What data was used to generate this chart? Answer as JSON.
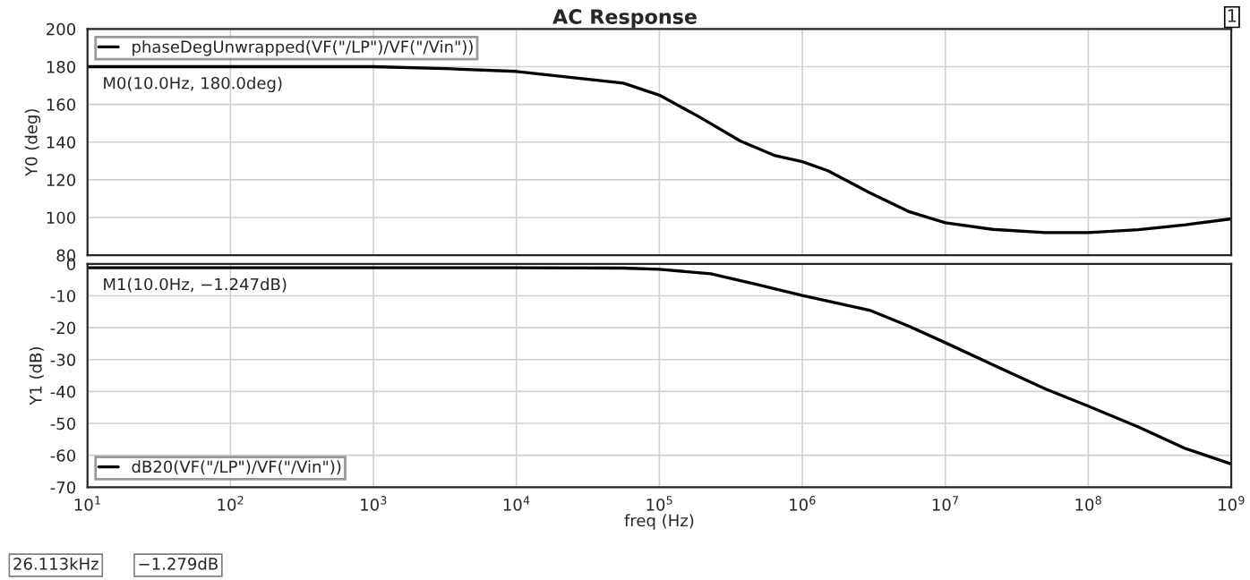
{
  "chart_data": [
    {
      "type": "line",
      "title": "AC Response",
      "ylabel": "Y0 (deg)",
      "log": "x",
      "grid": true,
      "legend": "top left",
      "tick_labels": "y",
      "line_style": "solid",
      "marker": "none",
      "xlim": [
        10,
        1000000000
      ],
      "ylim": [
        80,
        200
      ],
      "yticks": [
        80,
        100,
        120,
        140,
        160,
        180,
        200
      ],
      "series": [
        {
          "name": "phaseDegUnwrapped(VF(\"/LP\")/VF(\"/Vin\"))",
          "color": "#000000",
          "x": [
            10,
            100,
            1000,
            3162,
            10000,
            56000,
            100000,
            188000,
            368000,
            646000,
            1000000,
            1510000,
            2950000,
            5620000,
            10000000,
            21400000,
            50100000,
            100000000,
            224000000,
            479000000,
            1000000000
          ],
          "values": [
            180,
            180,
            180,
            179,
            177.5,
            171.3,
            164.9,
            153.6,
            140.6,
            132.8,
            129.6,
            124.8,
            113.2,
            103.0,
            97.2,
            93.7,
            92.0,
            92.0,
            93.5,
            96.1,
            99.3
          ]
        }
      ],
      "annotations": [
        {
          "text": "M0(10.0Hz, 180.0deg)",
          "x": 10,
          "y": 180
        },
        "1"
      ]
    },
    {
      "type": "line",
      "xlabel": "freq (Hz)",
      "ylabel": "Y1 (dB)",
      "log": "x",
      "grid": true,
      "legend": "bottom left",
      "line_style": "solid",
      "marker": "none",
      "xlim": [
        10,
        1000000000
      ],
      "xticks": [
        {
          "value": 10,
          "label": "10$^{1}$"
        },
        {
          "value": 100,
          "label": "10$^{2}$"
        },
        {
          "value": 1000,
          "label": "10$^{3}$"
        },
        {
          "value": 10000,
          "label": "10$^{4}$"
        },
        {
          "value": 100000,
          "label": "10$^{5}$"
        },
        {
          "value": 1000000,
          "label": "10$^{6}$"
        },
        {
          "value": 10000000,
          "label": "10$^{7}$"
        },
        {
          "value": 100000000,
          "label": "10$^{8}$"
        },
        {
          "value": 1000000000,
          "label": "10$^{9}$"
        }
      ],
      "ylim": [
        -70,
        0
      ],
      "yticks": [
        -70,
        -60,
        -50,
        -40,
        -30,
        -20,
        -10,
        0
      ],
      "series": [
        {
          "name": "dB20(VF(\"/LP\")/VF(\"/Vin\"))",
          "color": "#000000",
          "x": [
            10,
            1000,
            10000,
            56000,
            100000,
            229000,
            490000,
            1000000,
            2950000,
            5620000,
            10000000,
            23400000,
            50100000,
            100000000,
            224000000,
            479000000,
            1000000000
          ],
          "values": [
            -1.2,
            -1.2,
            -1.2,
            -1.3,
            -1.7,
            -3.1,
            -6.5,
            -9.9,
            -14.5,
            -19.6,
            -24.7,
            -32.4,
            -39.2,
            -44.6,
            -51.1,
            -57.9,
            -62.7
          ]
        }
      ],
      "annotations": [
        {
          "text": "M1(10.0Hz, −1.247dB)",
          "x": 10,
          "y": -1.247
        },
        "26.113kHz",
        "−1.279dB"
      ]
    }
  ]
}
